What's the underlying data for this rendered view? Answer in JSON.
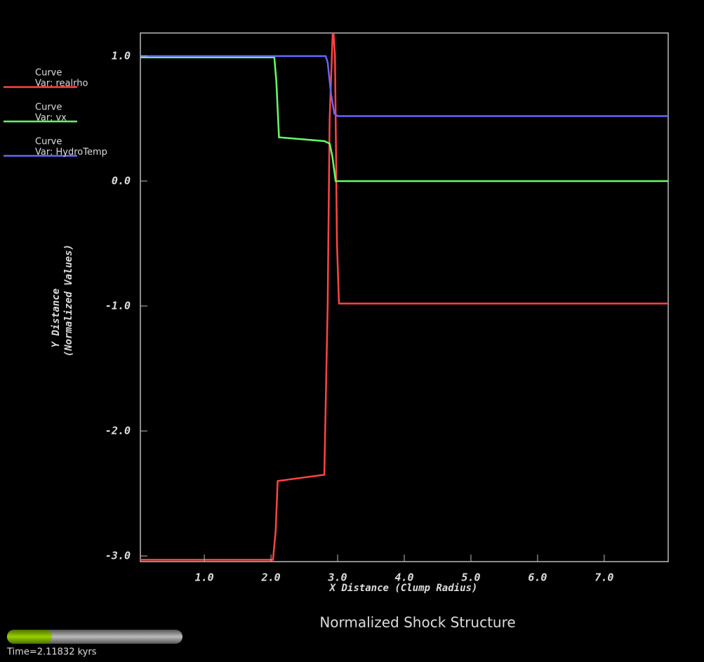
{
  "chart_data": {
    "type": "line",
    "title": "Normalized Shock Structure",
    "time_label": "Time=2.11832 kyrs",
    "x_label": "X Distance (Clump Radius)",
    "y_label": [
      "Y Distance",
      "(Normalized Values)"
    ],
    "xlim": [
      0.04,
      7.96
    ],
    "ylim": [
      -3.045,
      1.185
    ],
    "xticks": [
      {
        "value": 1,
        "label": "1.0"
      },
      {
        "value": 2,
        "label": "2.0"
      },
      {
        "value": 3,
        "label": "3.0"
      },
      {
        "value": 4,
        "label": "4.0"
      },
      {
        "value": 5,
        "label": "5.0"
      },
      {
        "value": 6,
        "label": "6.0"
      },
      {
        "value": 7,
        "label": "7.0"
      }
    ],
    "yticks": [
      {
        "value": 1,
        "label": "1.0"
      },
      {
        "value": 0,
        "label": "0.0"
      },
      {
        "value": -1,
        "label": "-1.0"
      },
      {
        "value": -2,
        "label": "-2.0"
      },
      {
        "value": -3,
        "label": "-3.0"
      }
    ],
    "series": [
      {
        "kind": "Curve",
        "name": "Var: realrho",
        "color": "#ff4444",
        "x": [
          0.04,
          2.03,
          2.07,
          2.1,
          2.8,
          2.85,
          2.88,
          2.93,
          2.96,
          2.99,
          3.02,
          7.96
        ],
        "values": [
          -3.03,
          -3.03,
          -2.8,
          -2.4,
          -2.35,
          -1.0,
          0.5,
          1.25,
          1.0,
          -0.5,
          -0.98,
          -0.98
        ]
      },
      {
        "kind": "Curve",
        "name": "Var: vx",
        "color": "#66ff66",
        "x": [
          0.04,
          2.05,
          2.08,
          2.12,
          2.8,
          2.88,
          2.92,
          2.97,
          7.96
        ],
        "values": [
          0.99,
          0.99,
          0.8,
          0.35,
          0.32,
          0.3,
          0.2,
          0.0,
          0.0
        ]
      },
      {
        "kind": "Curve",
        "name": "Var: HydroTemp",
        "color": "#6666ff",
        "x": [
          0.04,
          2.82,
          2.85,
          2.9,
          2.95,
          3.0,
          7.96
        ],
        "values": [
          1.0,
          1.0,
          0.95,
          0.7,
          0.54,
          0.52,
          0.52
        ]
      }
    ]
  }
}
